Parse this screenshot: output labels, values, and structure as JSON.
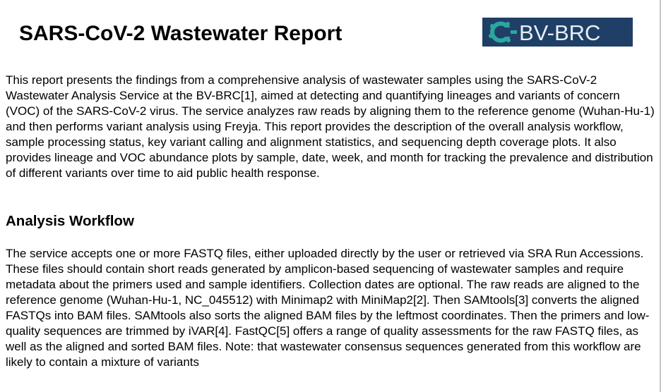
{
  "report": {
    "title": "SARS-CoV-2 Wastewater Report",
    "logo": {
      "icon": "bv-brc-logo",
      "text": "BV-BRC",
      "background": "#1f3f66",
      "accent": "#2aa8a0"
    },
    "intro": "This report presents the findings from a comprehensive analysis of wastewater samples using the SARS-CoV-2 Wastewater Analysis Service at the BV-BRC[1], aimed at detecting and quantifying lineages and variants of concern (VOC) of the SARS-CoV-2 virus. The service analyzes raw reads by aligning them to the reference genome (Wuhan-Hu-1) and then performs variant analysis using Freyja. This report provides the description of the overall analysis workflow, sample processing status, key variant calling and alignment statistics, and sequencing depth coverage plots. It also provides lineage and VOC abundance plots by sample, date, week, and month for tracking the prevalence and distribution of different variants over time to aid public health response.",
    "workflow_heading": "Analysis Workflow",
    "workflow_text": "The service accepts one or more FASTQ files, either uploaded directly by the user or retrieved via SRA Run Accessions. These files should contain short reads generated by amplicon-based sequencing of wastewater samples and require metadata about the primers used and sample identifiers. Collection dates are optional. The raw reads are aligned to the reference genome (Wuhan-Hu-1, NC_045512) with Minimap2 with MiniMap2[2]. Then SAMtools[3] converts the aligned FASTQs into BAM files. SAMtools also sorts the aligned BAM files by the leftmost coordinates. Then the primers and low-quality sequences are trimmed by iVAR[4]. FastQC[5] offers a range of quality assessments for the raw FASTQ files, as well as the aligned and sorted BAM files. Note: that wastewater consensus sequences generated from this workflow are likely to contain a mixture of variants"
  }
}
